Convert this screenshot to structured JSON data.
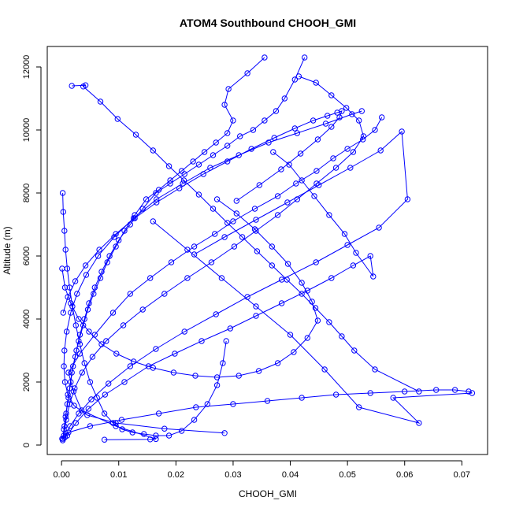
{
  "chart_data": {
    "type": "line",
    "title": "ATOM4 Southbound CHOOH_GMI",
    "xlabel": "CHOOH_GMI",
    "ylabel": "Altitude (m)",
    "xlim": [
      -0.0025,
      0.0745
    ],
    "ylim": [
      -300,
      12650
    ],
    "xticks": [
      0.0,
      0.01,
      0.02,
      0.03,
      0.04,
      0.05,
      0.06,
      0.07
    ],
    "xtick_labels": [
      "0.00",
      "0.01",
      "0.02",
      "0.03",
      "0.04",
      "0.05",
      "0.06",
      "0.07"
    ],
    "yticks": [
      0,
      2000,
      4000,
      6000,
      8000,
      10000,
      12000
    ],
    "ytick_labels": [
      "0",
      "2000",
      "4000",
      "6000",
      "8000",
      "10000",
      "12000"
    ],
    "series_color": "#0000ff",
    "marker": "open-circle",
    "series": [
      {
        "x": [
          0.0003,
          0.0005,
          0.0008,
          0.0012,
          0.0016,
          0.002,
          0.0026,
          0.0032,
          0.004,
          0.0048,
          0.0058,
          0.007,
          0.0084,
          0.01,
          0.012,
          0.0142,
          0.0165,
          0.019,
          0.0215,
          0.024,
          0.0265,
          0.029,
          0.0312,
          0.0335,
          0.0355,
          0.0375,
          0.039,
          0.0408,
          0.0425
        ],
        "y": [
          200,
          600,
          1000,
          1500,
          2000,
          2500,
          3000,
          3500,
          4000,
          4500,
          5000,
          5500,
          6000,
          6500,
          7000,
          7500,
          8000,
          8300,
          8600,
          8900,
          9200,
          9500,
          9800,
          10000,
          10300,
          10600,
          11000,
          11600,
          12300
        ]
      },
      {
        "x": [
          0.0002,
          0.0004,
          0.0007,
          0.001,
          0.0014,
          0.0018,
          0.0024,
          0.003,
          0.0038,
          0.0046,
          0.0056,
          0.0068,
          0.008,
          0.0095,
          0.011,
          0.0128,
          0.0148,
          0.017,
          0.019,
          0.021,
          0.023,
          0.025,
          0.027,
          0.029,
          0.03,
          0.0285,
          0.0292,
          0.0325,
          0.0355
        ],
        "y": [
          150,
          500,
          900,
          1300,
          1800,
          2300,
          2800,
          3300,
          3800,
          4300,
          4800,
          5300,
          5800,
          6300,
          6800,
          7300,
          7800,
          8100,
          8400,
          8700,
          9000,
          9300,
          9600,
          9900,
          10300,
          10800,
          11300,
          11800,
          12300
        ]
      },
      {
        "x": [
          0.0075,
          0.0155,
          0.0165,
          0.0095,
          0.0035,
          0.0021,
          0.0012,
          0.0032,
          0.0058,
          0.009,
          0.012,
          0.0155,
          0.0192,
          0.0232,
          0.0268,
          0.03,
          0.0338,
          0.0378,
          0.041,
          0.0446,
          0.0475,
          0.05,
          0.0527,
          0.0548,
          0.056
        ],
        "y": [
          170,
          180,
          190,
          600,
          1100,
          1700,
          2300,
          2900,
          3500,
          4200,
          4800,
          5300,
          5800,
          6300,
          6700,
          7100,
          7500,
          7900,
          8300,
          8700,
          9100,
          9400,
          9700,
          10000,
          10400
        ]
      },
      {
        "x": [
          0.0001,
          0.0012,
          0.005,
          0.0105,
          0.017,
          0.0235,
          0.03,
          0.036,
          0.042,
          0.048,
          0.054,
          0.06,
          0.0655,
          0.0688,
          0.0712,
          0.0718,
          0.058,
          0.0625,
          0.052,
          0.046,
          0.04,
          0.034,
          0.028,
          0.022,
          0.016
        ],
        "y": [
          200,
          400,
          600,
          800,
          1000,
          1200,
          1300,
          1400,
          1500,
          1600,
          1650,
          1700,
          1750,
          1750,
          1700,
          1650,
          1500,
          700,
          1200,
          2400,
          3500,
          4400,
          5300,
          6200,
          7100
        ]
      },
      {
        "x": [
          0.0285,
          0.018,
          0.0095,
          0.0045,
          0.0022,
          0.0011,
          0.0006,
          0.0004,
          0.0005,
          0.0009,
          0.0016,
          0.0027,
          0.0043,
          0.0064,
          0.0092,
          0.0126,
          0.0166,
          0.0212,
          0.026,
          0.031,
          0.0362,
          0.0412,
          0.0462,
          0.0508,
          0.0525
        ],
        "y": [
          380,
          520,
          700,
          950,
          1250,
          1600,
          2000,
          2500,
          3000,
          3600,
          4200,
          4800,
          5400,
          6000,
          6600,
          7200,
          7800,
          8300,
          8800,
          9200,
          9600,
          9900,
          10200,
          10500,
          10600
        ]
      },
      {
        "x": [
          0.001,
          0.0025,
          0.0047,
          0.0076,
          0.011,
          0.0152,
          0.0198,
          0.0245,
          0.0295,
          0.034,
          0.0385,
          0.043,
          0.0472,
          0.051,
          0.054,
          0.0545,
          0.0515,
          0.0495,
          0.0468,
          0.0442,
          0.042,
          0.0398,
          0.037
        ],
        "y": [
          300,
          700,
          1150,
          1600,
          2000,
          2500,
          2900,
          3300,
          3700,
          4100,
          4500,
          4900,
          5300,
          5700,
          6000,
          5350,
          6100,
          6700,
          7300,
          7900,
          8400,
          8900,
          9300
        ]
      },
      {
        "x": [
          0.0006,
          0.0015,
          0.003,
          0.0052,
          0.0082,
          0.012,
          0.0165,
          0.0215,
          0.027,
          0.0325,
          0.0385,
          0.0445,
          0.05,
          0.0555,
          0.0605,
          0.0595,
          0.0558,
          0.0505,
          0.045,
          0.0395,
          0.034,
          0.0285,
          0.0232
        ],
        "y": [
          250,
          600,
          1000,
          1450,
          1950,
          2500,
          3050,
          3600,
          4150,
          4700,
          5250,
          5800,
          6350,
          6900,
          7800,
          9950,
          9350,
          8800,
          8250,
          7700,
          7150,
          6600,
          6050
        ]
      },
      {
        "x": [
          0.0004,
          0.0008,
          0.0014,
          0.0023,
          0.0036,
          0.0054,
          0.0078,
          0.0108,
          0.0142,
          0.018,
          0.022,
          0.0262,
          0.0302,
          0.034,
          0.0378,
          0.0412,
          0.0446,
          0.048,
          0.051,
          0.0528,
          0.052,
          0.0498,
          0.0472,
          0.0445,
          0.0415
        ],
        "y": [
          300,
          800,
          1300,
          1800,
          2300,
          2800,
          3300,
          3800,
          4300,
          4800,
          5300,
          5800,
          6300,
          6800,
          7300,
          7800,
          8300,
          8800,
          9300,
          9800,
          10300,
          10700,
          11100,
          11500,
          11700
        ]
      },
      {
        "x": [
          0.0018,
          0.0042,
          0.0038,
          0.0068,
          0.0098,
          0.013,
          0.016,
          0.0188,
          0.0214,
          0.024,
          0.0265,
          0.029,
          0.0316,
          0.0342,
          0.0368,
          0.0394,
          0.042,
          0.0444,
          0.0468,
          0.049,
          0.0512,
          0.0548,
          0.0625
        ],
        "y": [
          11400,
          11420,
          11380,
          10900,
          10350,
          9850,
          9350,
          8850,
          8400,
          7950,
          7500,
          7050,
          6600,
          6150,
          5700,
          5250,
          4800,
          4350,
          3900,
          3450,
          3000,
          2400,
          1700
        ]
      },
      {
        "x": [
          0.0002,
          0.0003,
          0.0005,
          0.0007,
          0.001,
          0.0014,
          0.0019,
          0.0025,
          0.0032,
          0.004,
          0.005,
          0.0062,
          0.0075,
          0.009,
          0.0106,
          0.0124,
          0.0144,
          0.0165,
          0.0188,
          0.021,
          0.0232,
          0.0255,
          0.0272,
          0.0282,
          0.0288
        ],
        "y": [
          8000,
          7400,
          6800,
          6200,
          5600,
          5000,
          4400,
          3800,
          3200,
          2600,
          2000,
          1500,
          1000,
          700,
          500,
          400,
          350,
          300,
          300,
          450,
          800,
          1300,
          1900,
          2600,
          3300
        ]
      },
      {
        "x": [
          0.0001,
          0.0006,
          0.0016,
          0.003,
          0.0048,
          0.007,
          0.0096,
          0.0126,
          0.016,
          0.0196,
          0.0234,
          0.0272,
          0.031,
          0.0345,
          0.0378,
          0.0406,
          0.043,
          0.0448,
          0.0438,
          0.042,
          0.0396,
          0.0368,
          0.0338,
          0.0306,
          0.0272
        ],
        "y": [
          5600,
          5000,
          4500,
          4000,
          3600,
          3200,
          2900,
          2650,
          2450,
          2300,
          2200,
          2150,
          2200,
          2350,
          2600,
          2950,
          3400,
          3950,
          4550,
          5150,
          5750,
          6300,
          6850,
          7350,
          7800
        ]
      },
      {
        "x": [
          0.0003,
          0.0011,
          0.0024,
          0.0042,
          0.0066,
          0.0095,
          0.0128,
          0.0166,
          0.0206,
          0.0248,
          0.029,
          0.0332,
          0.0372,
          0.0408,
          0.044,
          0.0465,
          0.0482,
          0.049,
          0.0486,
          0.0472,
          0.0448,
          0.0418,
          0.0384,
          0.0346,
          0.0306
        ],
        "y": [
          4200,
          4700,
          5200,
          5700,
          6200,
          6700,
          7200,
          7700,
          8150,
          8600,
          9000,
          9400,
          9750,
          10050,
          10300,
          10450,
          10550,
          10600,
          10400,
          10100,
          9700,
          9250,
          8750,
          8250,
          7750
        ]
      }
    ]
  }
}
